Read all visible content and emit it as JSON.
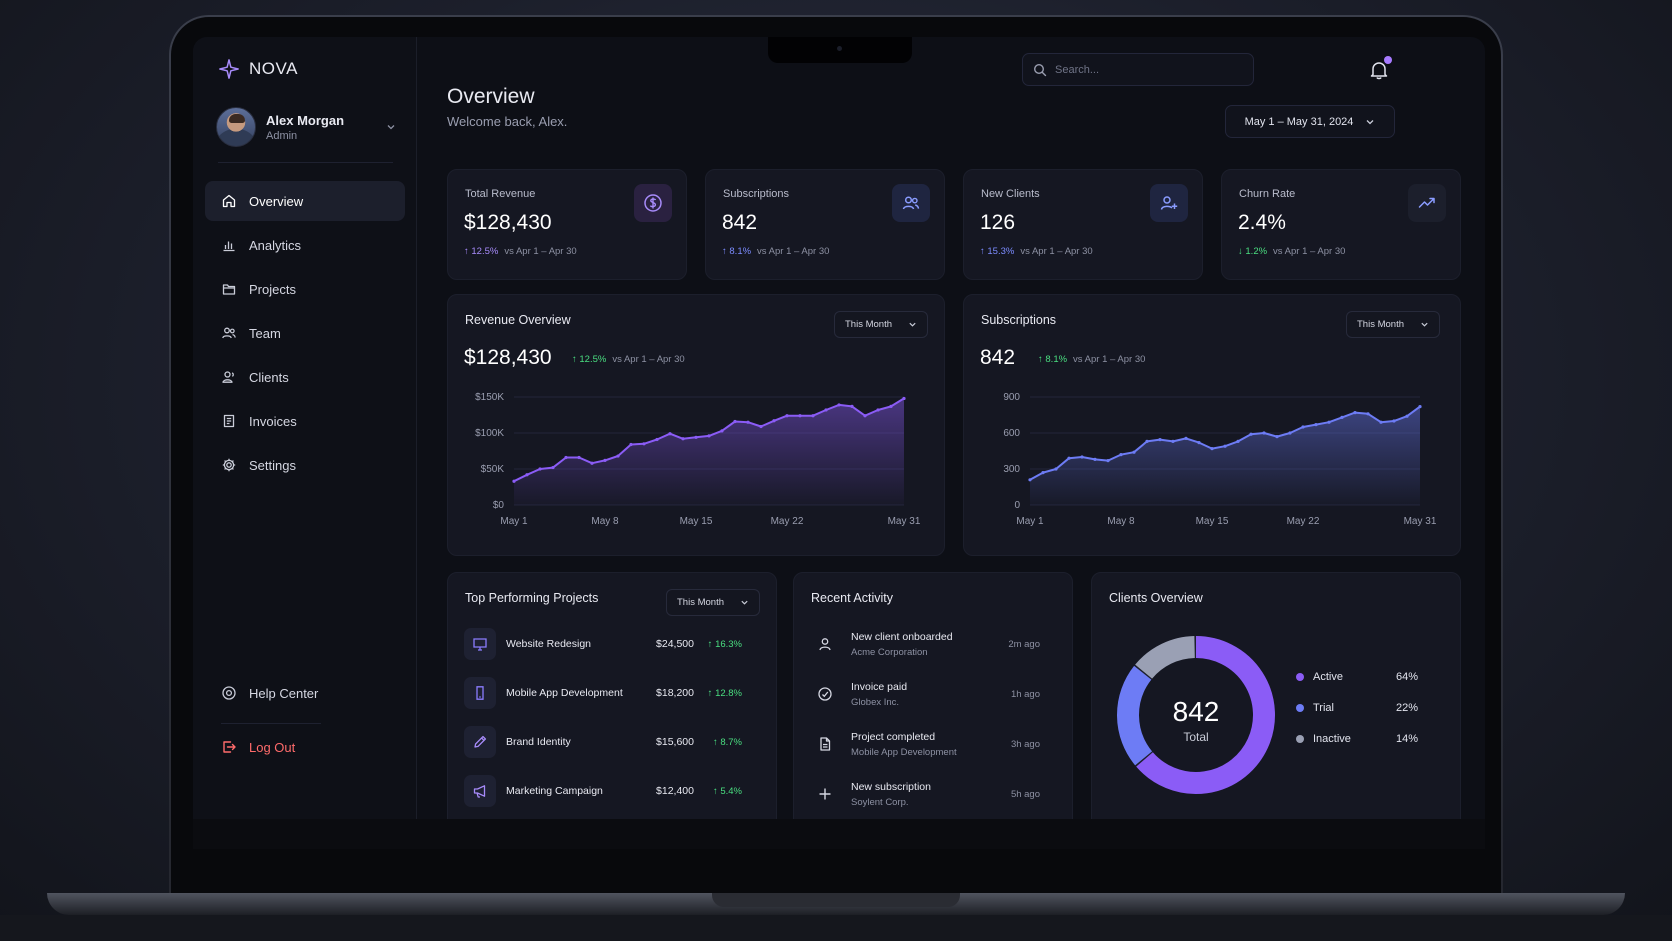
{
  "app": {
    "name": "NOVA"
  },
  "user": {
    "name": "Alex Morgan",
    "role": "Admin"
  },
  "nav": {
    "items": [
      {
        "label": "Overview",
        "icon": "home-icon",
        "active": true
      },
      {
        "label": "Analytics",
        "icon": "bar-chart-icon"
      },
      {
        "label": "Projects",
        "icon": "folder-icon"
      },
      {
        "label": "Team",
        "icon": "users-icon"
      },
      {
        "label": "Clients",
        "icon": "clients-icon"
      },
      {
        "label": "Invoices",
        "icon": "invoice-icon"
      },
      {
        "label": "Settings",
        "icon": "gear-icon"
      }
    ],
    "help": "Help Center",
    "logout": "Log Out"
  },
  "header": {
    "title": "Overview",
    "welcome": "Welcome back, Alex.",
    "search_placeholder": "Search...",
    "date_range": "May 1 – May 31, 2024"
  },
  "kpis": [
    {
      "label": "Total Revenue",
      "value": "$128,430",
      "delta": "12.5%",
      "direction": "up",
      "compare": "vs Apr 1 – Apr 30",
      "icon": "dollar-icon"
    },
    {
      "label": "Subscriptions",
      "value": "842",
      "delta": "8.1%",
      "direction": "up",
      "compare": "vs Apr 1 – Apr 30",
      "icon": "users-icon"
    },
    {
      "label": "New Clients",
      "value": "126",
      "delta": "15.3%",
      "direction": "up",
      "compare": "vs Apr 1 – Apr 30",
      "icon": "user-plus-icon"
    },
    {
      "label": "Churn Rate",
      "value": "2.4%",
      "delta": "1.2%",
      "direction": "down",
      "compare": "vs Apr 1 – Apr 30",
      "icon": "trend-icon"
    }
  ],
  "revenue": {
    "title": "Revenue Overview",
    "filter": "This Month",
    "value": "$128,430",
    "delta": "12.5%",
    "compare": "vs Apr 1 – Apr 30"
  },
  "subscriptions": {
    "title": "Subscriptions",
    "filter": "This Month",
    "value": "842",
    "delta": "8.1%",
    "compare": "vs Apr 1 – Apr 30"
  },
  "chart_data": [
    {
      "type": "area",
      "title": "Revenue Overview",
      "x": [
        "May 1",
        "May 2",
        "May 3",
        "May 4",
        "May 5",
        "May 6",
        "May 7",
        "May 8",
        "May 9",
        "May 10",
        "May 11",
        "May 12",
        "May 13",
        "May 14",
        "May 15",
        "May 16",
        "May 17",
        "May 18",
        "May 19",
        "May 20",
        "May 21",
        "May 22",
        "May 23",
        "May 24",
        "May 25",
        "May 26",
        "May 27",
        "May 28",
        "May 29",
        "May 30",
        "May 31"
      ],
      "x_ticks": [
        "May 1",
        "May 8",
        "May 15",
        "May 22",
        "May 31"
      ],
      "y_ticks": [
        "$0",
        "$50K",
        "$100K",
        "$150K"
      ],
      "ylim": [
        0,
        150000
      ],
      "color": "#8b5cf6",
      "series": [
        {
          "values": [
            33000,
            42000,
            50000,
            52000,
            66000,
            66000,
            58000,
            62000,
            68000,
            84000,
            85000,
            91000,
            99000,
            92000,
            94000,
            96000,
            103000,
            116000,
            115000,
            109000,
            117000,
            124000,
            124000,
            124000,
            132000,
            139000,
            137000,
            124000,
            132000,
            137000,
            148000
          ]
        }
      ]
    },
    {
      "type": "area",
      "title": "Subscriptions",
      "x": [
        "May 1",
        "May 2",
        "May 3",
        "May 4",
        "May 5",
        "May 6",
        "May 7",
        "May 8",
        "May 9",
        "May 10",
        "May 11",
        "May 12",
        "May 13",
        "May 14",
        "May 15",
        "May 16",
        "May 17",
        "May 18",
        "May 19",
        "May 20",
        "May 21",
        "May 22",
        "May 23",
        "May 24",
        "May 25",
        "May 26",
        "May 27",
        "May 28",
        "May 29",
        "May 30",
        "May 31"
      ],
      "x_ticks": [
        "May 1",
        "May 8",
        "May 15",
        "May 22",
        "May 31"
      ],
      "y_ticks": [
        "0",
        "300",
        "600",
        "900"
      ],
      "ylim": [
        0,
        900
      ],
      "color": "#6d7cf5",
      "series": [
        {
          "values": [
            210,
            270,
            300,
            390,
            400,
            380,
            370,
            420,
            440,
            530,
            545,
            530,
            555,
            520,
            470,
            490,
            530,
            590,
            600,
            570,
            600,
            650,
            670,
            690,
            730,
            770,
            760,
            690,
            700,
            740,
            820
          ]
        }
      ]
    },
    {
      "type": "pie",
      "title": "Clients Overview",
      "center_value": "842",
      "center_label": "Total",
      "slices": [
        {
          "label": "Active",
          "value": 64,
          "display": "64%",
          "color": "#8b5cf6"
        },
        {
          "label": "Trial",
          "value": 22,
          "display": "22%",
          "color": "#6d7cf5"
        },
        {
          "label": "Inactive",
          "value": 14,
          "display": "14%",
          "color": "#9aa0b4"
        }
      ]
    }
  ],
  "projects": {
    "title": "Top Performing Projects",
    "filter": "This Month",
    "items": [
      {
        "name": "Website Redesign",
        "amount": "$24,500",
        "delta": "16.3%",
        "icon": "monitor-icon"
      },
      {
        "name": "Mobile App Development",
        "amount": "$18,200",
        "delta": "12.8%",
        "icon": "mobile-icon"
      },
      {
        "name": "Brand Identity",
        "amount": "$15,600",
        "delta": "8.7%",
        "icon": "pen-icon"
      },
      {
        "name": "Marketing Campaign",
        "amount": "$12,400",
        "delta": "5.4%",
        "icon": "megaphone-icon"
      }
    ]
  },
  "activity": {
    "title": "Recent Activity",
    "items": [
      {
        "title": "New client onboarded",
        "sub": "Acme Corporation",
        "time": "2m ago",
        "icon": "user-icon"
      },
      {
        "title": "Invoice paid",
        "sub": "Globex Inc.",
        "time": "1h ago",
        "icon": "check-circle-icon"
      },
      {
        "title": "Project completed",
        "sub": "Mobile App Development",
        "time": "3h ago",
        "icon": "document-icon"
      },
      {
        "title": "New subscription",
        "sub": "Soylent Corp.",
        "time": "5h ago",
        "icon": "plus-icon"
      }
    ]
  },
  "clients": {
    "title": "Clients Overview"
  }
}
